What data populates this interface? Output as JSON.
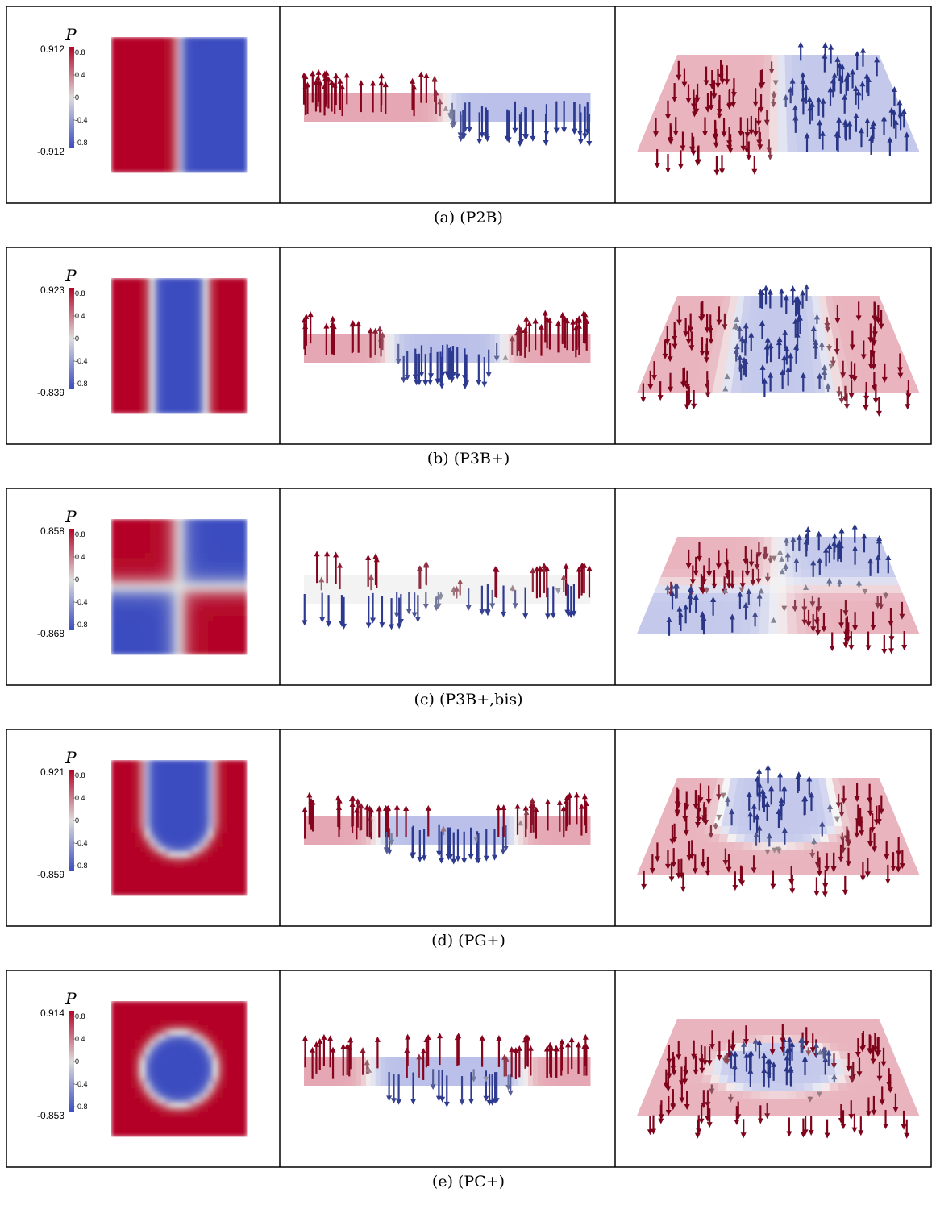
{
  "panels": [
    {
      "caption": "(a) (P2B)",
      "colorbar": {
        "label": "P",
        "max": "0.912",
        "min": "-0.912",
        "ticks": [
          "0.8",
          "0.4",
          "0",
          "-0.4",
          "-0.8"
        ]
      }
    },
    {
      "caption": "(b) (P3B+)",
      "colorbar": {
        "label": "P",
        "max": "0.923",
        "min": "-0.839",
        "ticks": [
          "0.8",
          "0.4",
          "0",
          "-0.4",
          "-0.8"
        ]
      }
    },
    {
      "caption": "(c) (P3B+,bis)",
      "colorbar": {
        "label": "P",
        "max": "0.858",
        "min": "-0.868",
        "ticks": [
          "0.8",
          "0.4",
          "0",
          "-0.4",
          "-0.8"
        ]
      }
    },
    {
      "caption": "(d) (PG+)",
      "colorbar": {
        "label": "P",
        "max": "0.921",
        "min": "-0.859",
        "ticks": [
          "0.8",
          "0.4",
          "0",
          "-0.4",
          "-0.8"
        ]
      }
    },
    {
      "caption": "(e) (PC+)",
      "colorbar": {
        "label": "P",
        "max": "0.914",
        "min": "-0.853",
        "ticks": [
          "0.8",
          "0.4",
          "0",
          "-0.4",
          "-0.8"
        ]
      }
    }
  ]
}
